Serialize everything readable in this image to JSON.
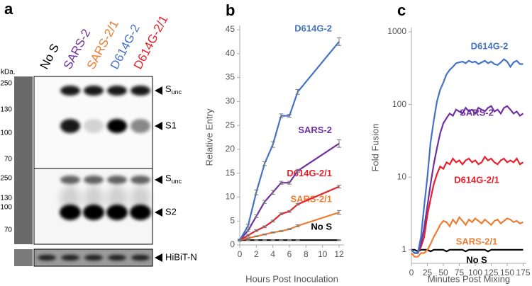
{
  "panel_a": {
    "label": "a",
    "lanes": [
      "No S",
      "SARS-2",
      "SARS-2/1",
      "D614G-2",
      "D614G-2/1"
    ],
    "lane_colors": [
      "#000000",
      "#7030a0",
      "#ed7d31",
      "#4472c4",
      "#e8202a"
    ],
    "kda_unit": "kDa.",
    "upper_markers": [
      250,
      130,
      100,
      70
    ],
    "lower_markers": [
      250,
      130,
      100,
      70
    ],
    "upper_sunc": {
      "main": "S",
      "sub": "unc"
    },
    "s1": "S1",
    "lower_sunc": {
      "main": "S",
      "sub": "unc"
    },
    "s2": "S2",
    "hibit": "HiBiT-N"
  },
  "chart_data": [
    {
      "type": "line",
      "label": "b",
      "y_label": "Relative Entry",
      "x_label": "Hours Post Inoculation",
      "x": [
        0,
        1,
        2,
        3,
        4,
        5,
        6,
        7,
        12
      ],
      "xlim": [
        0,
        12.6
      ],
      "xticks": [
        0,
        2,
        4,
        6,
        8,
        10,
        12
      ],
      "ylim": [
        0,
        45
      ],
      "yticks": [
        0,
        5,
        10,
        15,
        20,
        25,
        30,
        35,
        40,
        45
      ],
      "log": false,
      "series": [
        {
          "name": "D614G-2",
          "color": "#4472c4",
          "values": [
            1,
            4,
            11,
            17,
            21,
            27,
            27,
            32,
            42.5
          ],
          "errors": [
            0.2,
            0.3,
            0.5,
            0.4,
            0.6,
            0.4,
            0.3,
            0.5,
            0.8
          ]
        },
        {
          "name": "SARS-2",
          "color": "#7030a0",
          "values": [
            1,
            3,
            6,
            9,
            11,
            13,
            13,
            15.5,
            21.2
          ],
          "errors": [
            0.2,
            0.2,
            0.3,
            0.3,
            0.4,
            0.3,
            0.3,
            0.3,
            0.8
          ]
        },
        {
          "name": "D614G-2/1",
          "color": "#e8202a",
          "values": [
            1,
            2,
            3,
            3.8,
            5,
            6.5,
            7,
            8.5,
            12.2
          ],
          "errors": [
            0.1,
            0.2,
            0.2,
            0.2,
            0.2,
            0.2,
            0.2,
            0.2,
            0.3
          ]
        },
        {
          "name": "SARS-2/1",
          "color": "#ed7d31",
          "values": [
            1,
            1.4,
            1.8,
            2.2,
            2.6,
            2.9,
            3.3,
            4,
            6.8
          ],
          "errors": [
            0.1,
            0.1,
            0.1,
            0.1,
            0.1,
            0.1,
            0.1,
            0.2,
            0.4
          ]
        },
        {
          "name": "No S",
          "color": "#000000",
          "values": [
            1,
            1,
            1,
            1,
            1,
            1,
            1,
            1,
            1
          ],
          "errors": [
            0.05,
            0.05,
            0.05,
            0.05,
            0.05,
            0.05,
            0.05,
            0.05,
            0.05
          ]
        }
      ]
    },
    {
      "type": "line",
      "label": "c",
      "y_label": "Fold Fusion",
      "x_label": "Minutes Post Mixing",
      "x": [
        0,
        5,
        10,
        15,
        20,
        25,
        30,
        35,
        40,
        45,
        50,
        55,
        60,
        65,
        70,
        75,
        80,
        85,
        90,
        95,
        100,
        105,
        110,
        115,
        120,
        125,
        130,
        135,
        140,
        145,
        150,
        155,
        160,
        165,
        170,
        175
      ],
      "xlim": [
        0,
        180
      ],
      "xticks": [
        0,
        25,
        50,
        75,
        100,
        125,
        150,
        175
      ],
      "ylim": [
        0.65,
        1000
      ],
      "yticks": [
        1,
        10,
        100,
        1000
      ],
      "log": true,
      "series": [
        {
          "name": "D614G-2",
          "color": "#4472c4",
          "values": [
            1,
            0.9,
            0.9,
            1.5,
            4,
            10,
            30,
            60,
            110,
            160,
            200,
            260,
            300,
            330,
            370,
            380,
            390,
            370,
            400,
            380,
            390,
            360,
            380,
            400,
            370,
            390,
            360,
            350,
            380,
            420,
            390,
            330,
            380,
            400,
            360,
            360
          ]
        },
        {
          "name": "SARS-2",
          "color": "#7030a0",
          "values": [
            1,
            0.9,
            0.9,
            1.2,
            2,
            4,
            8,
            15,
            25,
            40,
            55,
            65,
            75,
            70,
            85,
            80,
            75,
            90,
            80,
            85,
            75,
            90,
            85,
            80,
            90,
            95,
            80,
            85,
            75,
            90,
            95,
            85,
            75,
            80,
            70,
            75
          ]
        },
        {
          "name": "D614G-2/1",
          "color": "#e8202a",
          "values": [
            1,
            0.9,
            0.9,
            1.1,
            1.5,
            3,
            5,
            8,
            11,
            14,
            13,
            16,
            15,
            18,
            16,
            17,
            15,
            17,
            18,
            16,
            17,
            15,
            16,
            19,
            17,
            18,
            16,
            15,
            17,
            18,
            16,
            17,
            16,
            18,
            15,
            16
          ]
        },
        {
          "name": "SARS-2/1",
          "color": "#ed7d31",
          "values": [
            0.9,
            0.8,
            0.8,
            0.9,
            0.9,
            1,
            1.2,
            1.5,
            1.8,
            2.2,
            2.5,
            2.4,
            2.1,
            2.6,
            2.3,
            2.8,
            2.5,
            2.2,
            2.6,
            2.4,
            2.7,
            2.5,
            2.3,
            2.6,
            2.4,
            2.2,
            2.5,
            2.6,
            2.3,
            2.5,
            2.7,
            2.6,
            2.4,
            2.5,
            2.3,
            2.4
          ]
        },
        {
          "name": "No S",
          "color": "#000000",
          "values": [
            1,
            1,
            0.95,
            1,
            1,
            1,
            0.95,
            1,
            1,
            1,
            1,
            0.95,
            1,
            1,
            1,
            1,
            1,
            0.95,
            1,
            1,
            1,
            1,
            1,
            1,
            0.95,
            1,
            1,
            1,
            1,
            1,
            1,
            1,
            1,
            1,
            1,
            1
          ]
        }
      ]
    }
  ]
}
